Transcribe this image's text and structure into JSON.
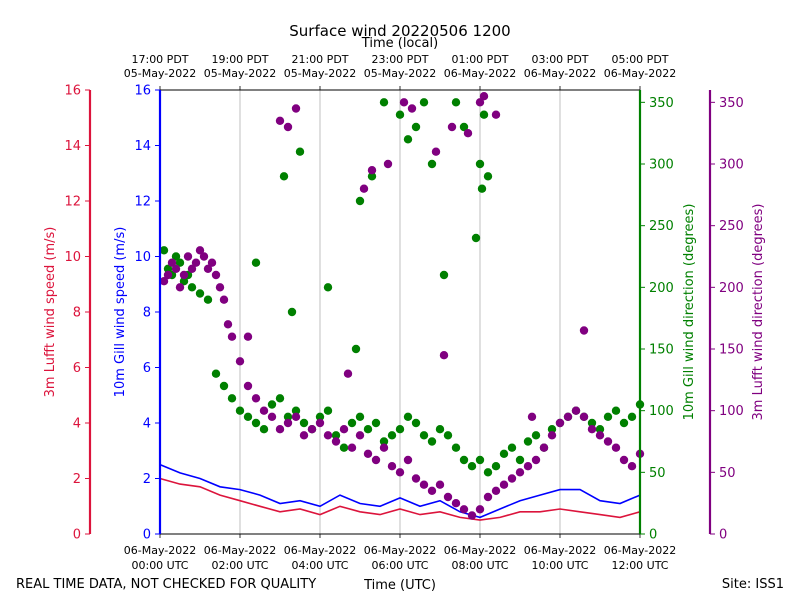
{
  "chart_data": {
    "type": "scatter",
    "title": "Surface wind 20220506 1200",
    "top_axis_label": "Time (local)",
    "xlabel": "Time (UTC)",
    "footer_left": "REAL TIME DATA, NOT CHECKED FOR QUALITY",
    "footer_right": "Site: ISS1",
    "x_range_hours": [
      0,
      12
    ],
    "grid": "vertical",
    "x_ticks_utc": [
      {
        "h": 0,
        "date": "06-May-2022",
        "time": "00:00 UTC"
      },
      {
        "h": 2,
        "date": "06-May-2022",
        "time": "02:00 UTC"
      },
      {
        "h": 4,
        "date": "06-May-2022",
        "time": "04:00 UTC"
      },
      {
        "h": 6,
        "date": "06-May-2022",
        "time": "06:00 UTC"
      },
      {
        "h": 8,
        "date": "06-May-2022",
        "time": "08:00 UTC"
      },
      {
        "h": 10,
        "date": "06-May-2022",
        "time": "10:00 UTC"
      },
      {
        "h": 12,
        "date": "06-May-2022",
        "time": "12:00 UTC"
      }
    ],
    "x_ticks_local": [
      {
        "h": 0,
        "time": "17:00 PDT",
        "date": "05-May-2022"
      },
      {
        "h": 2,
        "time": "19:00 PDT",
        "date": "05-May-2022"
      },
      {
        "h": 4,
        "time": "21:00 PDT",
        "date": "05-May-2022"
      },
      {
        "h": 6,
        "time": "23:00 PDT",
        "date": "05-May-2022"
      },
      {
        "h": 8,
        "time": "01:00 PDT",
        "date": "06-May-2022"
      },
      {
        "h": 10,
        "time": "03:00 PDT",
        "date": "06-May-2022"
      },
      {
        "h": 12,
        "time": "05:00 PDT",
        "date": "06-May-2022"
      }
    ],
    "axes": [
      {
        "id": "lufft_speed",
        "label": "3m Lufft wind speed (m/s)",
        "color": "#dc143c",
        "range": [
          0,
          16
        ],
        "ticks": [
          0,
          2,
          4,
          6,
          8,
          10,
          12,
          14,
          16
        ],
        "side": "left-outer"
      },
      {
        "id": "gill_speed",
        "label": "10m Gill wind speed (m/s)",
        "color": "#0000ff",
        "range": [
          0,
          16
        ],
        "ticks": [
          0,
          2,
          4,
          6,
          8,
          10,
          12,
          14,
          16
        ],
        "side": "left"
      },
      {
        "id": "gill_dir",
        "label": "10m Gill wind direction (degrees)",
        "color": "#008000",
        "range": [
          0,
          360
        ],
        "ticks": [
          0,
          50,
          100,
          150,
          200,
          250,
          300,
          350
        ],
        "side": "right"
      },
      {
        "id": "lufft_dir",
        "label": "3m Lufft wind direction (degrees)",
        "color": "#800080",
        "range": [
          0,
          360
        ],
        "ticks": [
          0,
          50,
          100,
          150,
          200,
          250,
          300,
          350
        ],
        "side": "right-outer"
      }
    ],
    "series": [
      {
        "name": "10m Gill wind speed",
        "axis": "gill_speed",
        "style": "line",
        "color": "#0000ff",
        "x": [
          0,
          0.5,
          1,
          1.5,
          2,
          2.5,
          3,
          3.5,
          4,
          4.5,
          5,
          5.5,
          6,
          6.5,
          7,
          7.5,
          8,
          8.5,
          9,
          9.5,
          10,
          10.5,
          11,
          11.5,
          12
        ],
        "y": [
          2.5,
          2.2,
          2.0,
          1.7,
          1.6,
          1.4,
          1.1,
          1.2,
          1.0,
          1.4,
          1.1,
          1.0,
          1.3,
          1.0,
          1.2,
          0.8,
          0.6,
          0.9,
          1.2,
          1.4,
          1.6,
          1.6,
          1.2,
          1.1,
          1.4
        ]
      },
      {
        "name": "3m Lufft wind speed",
        "axis": "lufft_speed",
        "style": "line",
        "color": "#dc143c",
        "x": [
          0,
          0.5,
          1,
          1.5,
          2,
          2.5,
          3,
          3.5,
          4,
          4.5,
          5,
          5.5,
          6,
          6.5,
          7,
          7.5,
          8,
          8.5,
          9,
          9.5,
          10,
          10.5,
          11,
          11.5,
          12
        ],
        "y": [
          2.0,
          1.8,
          1.7,
          1.4,
          1.2,
          1.0,
          0.8,
          0.9,
          0.7,
          1.0,
          0.8,
          0.7,
          0.9,
          0.7,
          0.8,
          0.6,
          0.5,
          0.6,
          0.8,
          0.8,
          0.9,
          0.8,
          0.7,
          0.6,
          0.8
        ]
      },
      {
        "name": "10m Gill wind direction",
        "axis": "gill_dir",
        "style": "scatter",
        "color": "#008000",
        "x": [
          0.1,
          0.2,
          0.3,
          0.4,
          0.5,
          0.6,
          0.7,
          0.8,
          1.0,
          1.2,
          1.4,
          1.6,
          1.8,
          2.0,
          2.2,
          2.4,
          2.6,
          2.8,
          3.0,
          3.2,
          3.4,
          3.6,
          3.8,
          4.0,
          4.2,
          4.4,
          4.6,
          4.8,
          5.0,
          5.2,
          5.4,
          5.6,
          5.8,
          6.0,
          6.2,
          6.4,
          6.6,
          6.8,
          7.0,
          7.2,
          7.4,
          7.6,
          7.8,
          8.0,
          8.2,
          8.4,
          8.6,
          8.8,
          9.0,
          9.2,
          9.4,
          9.6,
          9.8,
          10.0,
          10.2,
          10.4,
          10.6,
          10.8,
          11.0,
          11.2,
          11.4,
          11.6,
          11.8,
          12.0,
          3.1,
          3.5,
          5.0,
          5.3,
          5.6,
          6.0,
          6.2,
          6.4,
          6.6,
          6.8,
          7.1,
          7.4,
          7.6,
          8.0,
          8.05,
          8.1,
          8.2,
          2.4,
          3.3,
          4.2,
          4.9,
          7.9
        ],
        "y": [
          230,
          215,
          210,
          225,
          220,
          205,
          210,
          200,
          195,
          190,
          130,
          120,
          110,
          100,
          95,
          90,
          85,
          105,
          110,
          95,
          100,
          90,
          85,
          95,
          100,
          80,
          70,
          90,
          95,
          85,
          90,
          75,
          80,
          85,
          95,
          90,
          80,
          75,
          85,
          80,
          70,
          60,
          55,
          60,
          50,
          55,
          65,
          70,
          60,
          75,
          80,
          70,
          85,
          90,
          95,
          100,
          95,
          90,
          85,
          95,
          100,
          90,
          95,
          105,
          290,
          310,
          270,
          290,
          350,
          340,
          320,
          330,
          350,
          300,
          210,
          350,
          330,
          300,
          280,
          340,
          290,
          220,
          180,
          200,
          150,
          240
        ]
      },
      {
        "name": "3m Lufft wind direction",
        "axis": "lufft_dir",
        "style": "scatter",
        "color": "#800080",
        "x": [
          0.1,
          0.2,
          0.3,
          0.4,
          0.5,
          0.6,
          0.7,
          0.8,
          0.9,
          1.0,
          1.1,
          1.2,
          1.3,
          1.4,
          1.5,
          1.6,
          1.7,
          1.8,
          2.0,
          2.2,
          2.4,
          2.6,
          2.8,
          3.0,
          3.2,
          3.4,
          3.6,
          3.8,
          4.0,
          4.2,
          4.4,
          4.6,
          4.8,
          5.0,
          5.2,
          5.4,
          5.6,
          5.8,
          6.0,
          6.2,
          6.4,
          6.6,
          6.8,
          7.0,
          7.2,
          7.4,
          7.6,
          7.8,
          8.0,
          8.2,
          8.4,
          8.6,
          8.8,
          9.0,
          9.2,
          9.4,
          9.6,
          9.8,
          10.0,
          10.2,
          10.4,
          10.6,
          10.8,
          11.0,
          11.2,
          11.4,
          11.6,
          11.8,
          12.0,
          3.0,
          3.2,
          3.4,
          5.1,
          5.3,
          5.7,
          6.1,
          6.3,
          6.9,
          7.3,
          7.7,
          8.0,
          8.1,
          8.4,
          10.6,
          2.2,
          4.7,
          7.1,
          9.3
        ],
        "y": [
          205,
          210,
          220,
          215,
          200,
          210,
          225,
          215,
          220,
          230,
          225,
          215,
          220,
          210,
          200,
          190,
          170,
          160,
          140,
          120,
          110,
          100,
          95,
          85,
          90,
          95,
          80,
          85,
          90,
          80,
          75,
          85,
          70,
          80,
          65,
          60,
          70,
          55,
          50,
          60,
          45,
          40,
          35,
          40,
          30,
          25,
          20,
          15,
          20,
          30,
          35,
          40,
          45,
          50,
          55,
          60,
          70,
          80,
          90,
          95,
          100,
          95,
          85,
          80,
          75,
          70,
          60,
          55,
          65,
          335,
          330,
          345,
          280,
          295,
          300,
          350,
          345,
          310,
          330,
          325,
          350,
          355,
          340,
          165,
          160,
          130,
          145,
          95
        ]
      }
    ]
  }
}
